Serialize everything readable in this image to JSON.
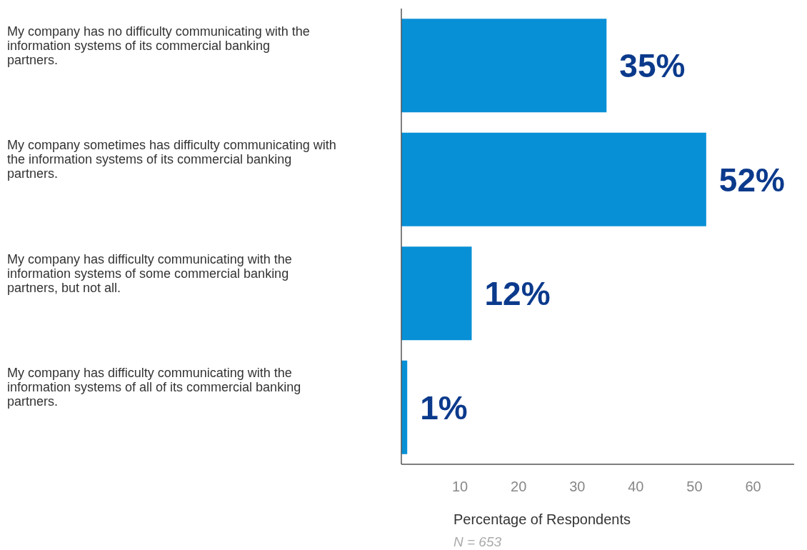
{
  "chart_data": {
    "type": "bar",
    "orientation": "horizontal",
    "xlabel": "Percentage of Respondents",
    "annotations": [
      "N = 653"
    ],
    "categories": [
      "My company has no difficulty communicating with the information systems of its commercial banking partners.",
      "My company sometimes has difficulty communicating with the information systems of its commercial banking partners.",
      "My company has difficulty communicating with the information systems of some commercial banking partners, but not all.",
      "My company has difficulty communicating with the information systems of all of its commercial banking partners."
    ],
    "values": [
      35,
      52,
      12,
      1
    ],
    "value_labels": [
      "35%",
      "52%",
      "12%",
      "1%"
    ],
    "color": "#0890d6",
    "xlim": [
      0,
      67
    ],
    "xticks": [
      10,
      20,
      30,
      40,
      50,
      60
    ]
  }
}
